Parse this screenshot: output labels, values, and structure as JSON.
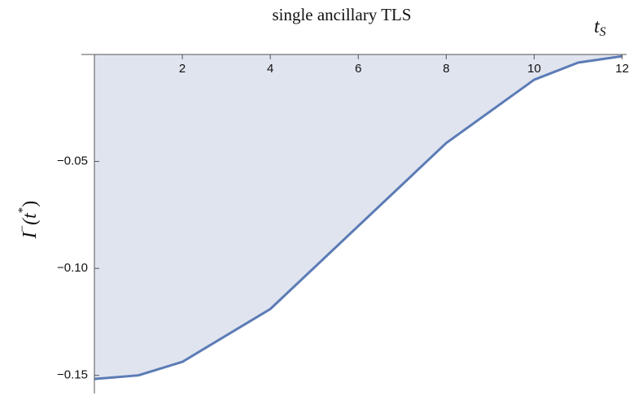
{
  "chart_data": {
    "type": "area",
    "title": "single ancillary TLS",
    "xlabel": [
      "t",
      "S"
    ],
    "ylabel": [
      "I",
      "−",
      "(t",
      "*",
      ")"
    ],
    "x": [
      0,
      1,
      2,
      4,
      8,
      10,
      11,
      12
    ],
    "values": [
      -0.1517,
      -0.15,
      -0.1437,
      -0.119,
      -0.0414,
      -0.0118,
      -0.0038,
      -0.0008
    ],
    "color": "#5b7bb5",
    "fill_color": "#dfe4ef",
    "xlim": [
      0,
      12.1
    ],
    "ylim": [
      -0.16,
      0
    ],
    "xticks": [
      2,
      4,
      6,
      8,
      10,
      12
    ],
    "yticks": [
      {
        "value": -0.05,
        "label": "−0.05"
      },
      {
        "value": -0.1,
        "label": "−0.10"
      },
      {
        "value": -0.15,
        "label": "−0.15"
      }
    ]
  }
}
